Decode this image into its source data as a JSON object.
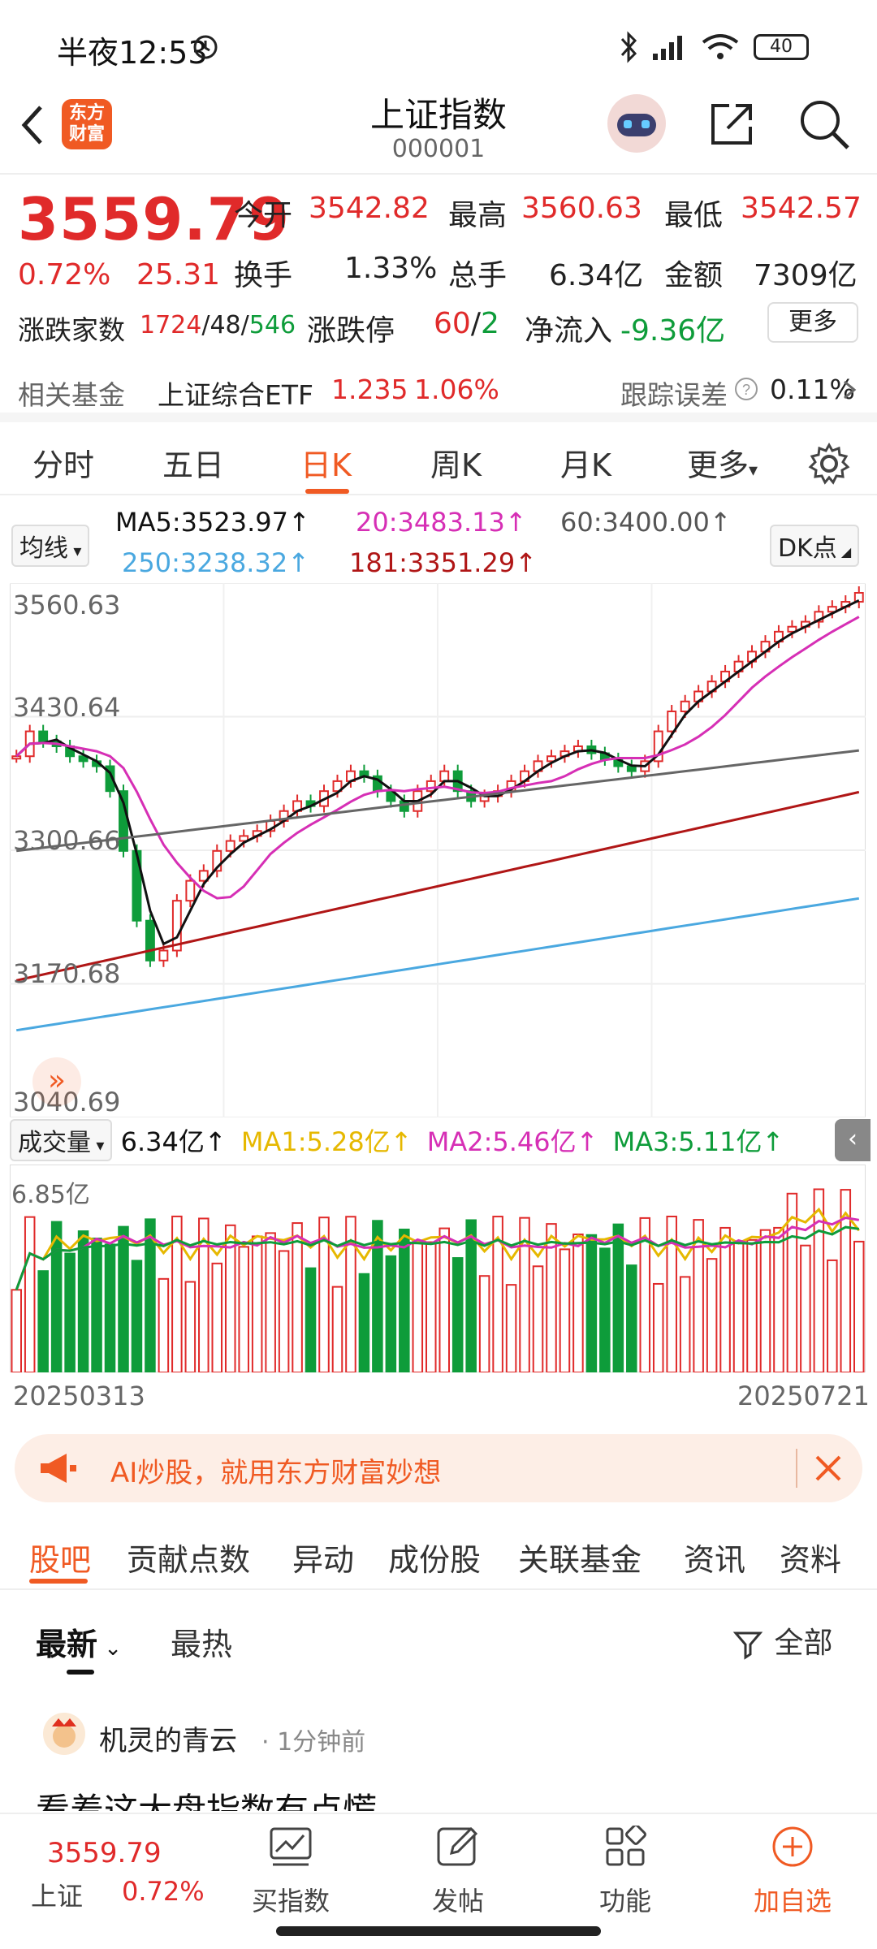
{
  "status": {
    "time": "半夜12:53",
    "battery": "40"
  },
  "nav": {
    "title": "上证指数",
    "code": "000001",
    "logo_text_1": "东方",
    "logo_text_2": "财富"
  },
  "quote": {
    "price": "3559.79",
    "change_pct": "0.72%",
    "change_abs": "25.31",
    "open_label": "今开",
    "open": "3542.82",
    "high_label": "最高",
    "high": "3560.63",
    "low_label": "最低",
    "low": "3542.57",
    "turnover_label": "换手",
    "turnover": "1.33%",
    "volume_label": "总手",
    "volume": "6.34亿",
    "amount_label": "金额",
    "amount": "7309亿",
    "breadth_label": "涨跌家数",
    "breadth_up": "1724",
    "breadth_flat": "48",
    "breadth_down": "546",
    "limit_label": "涨跌停",
    "limit_up": "60",
    "limit_down": "2",
    "netflow_label": "净流入",
    "netflow": "-9.36亿",
    "more": "更多"
  },
  "fund": {
    "label": "相关基金",
    "name": "上证综合ETF",
    "price": "1.235",
    "pct": "1.06%",
    "tracking_label": "跟踪误差",
    "tracking_value": "0.11%"
  },
  "tabs": [
    "分时",
    "五日",
    "日K",
    "周K",
    "月K",
    "更多"
  ],
  "ma": {
    "selector": "均线",
    "ma5": "MA5:3523.97",
    "ma20": "20:3483.13",
    "ma60": "60:3400.00",
    "ma250": "250:3238.32",
    "ma181": "181:3351.29",
    "dk": "DK点"
  },
  "chart_data": {
    "type": "candlestick",
    "y_ticks": [
      "3560.63",
      "3430.64",
      "3300.66",
      "3170.68",
      "3040.69"
    ],
    "x_range": [
      "20250313",
      "20250721"
    ],
    "colors": {
      "up": "#e02a2a",
      "down": "#0e9c3a",
      "ma5": "#111111",
      "ma20": "#d62fb5",
      "ma60": "#666666",
      "ma181": "#b01616",
      "ma250": "#4aa8e0"
    }
  },
  "volume": {
    "selector": "成交量",
    "value": "6.34亿",
    "ma1": "MA1:5.28亿",
    "ma2": "MA2:5.46亿",
    "ma3": "MA3:5.11亿",
    "max_label": "6.85亿"
  },
  "dates": {
    "start": "20250313",
    "end": "20250721"
  },
  "banner": {
    "text": "AI炒股，就用东方财富妙想"
  },
  "sub_tabs": [
    "股吧",
    "贡献点数",
    "异动",
    "成份股",
    "关联基金",
    "资讯",
    "资料"
  ],
  "feed": {
    "sort_new": "最新",
    "sort_hot": "最热",
    "filter": "全部",
    "user": "机灵的青云",
    "time": "1分钟前",
    "post_text": "看着这大盘指数有点慌"
  },
  "bottom": {
    "index_price": "3559.79",
    "index_name": "上证",
    "index_pct": "0.72%",
    "items": [
      "买指数",
      "发帖",
      "功能",
      "加自选"
    ]
  }
}
